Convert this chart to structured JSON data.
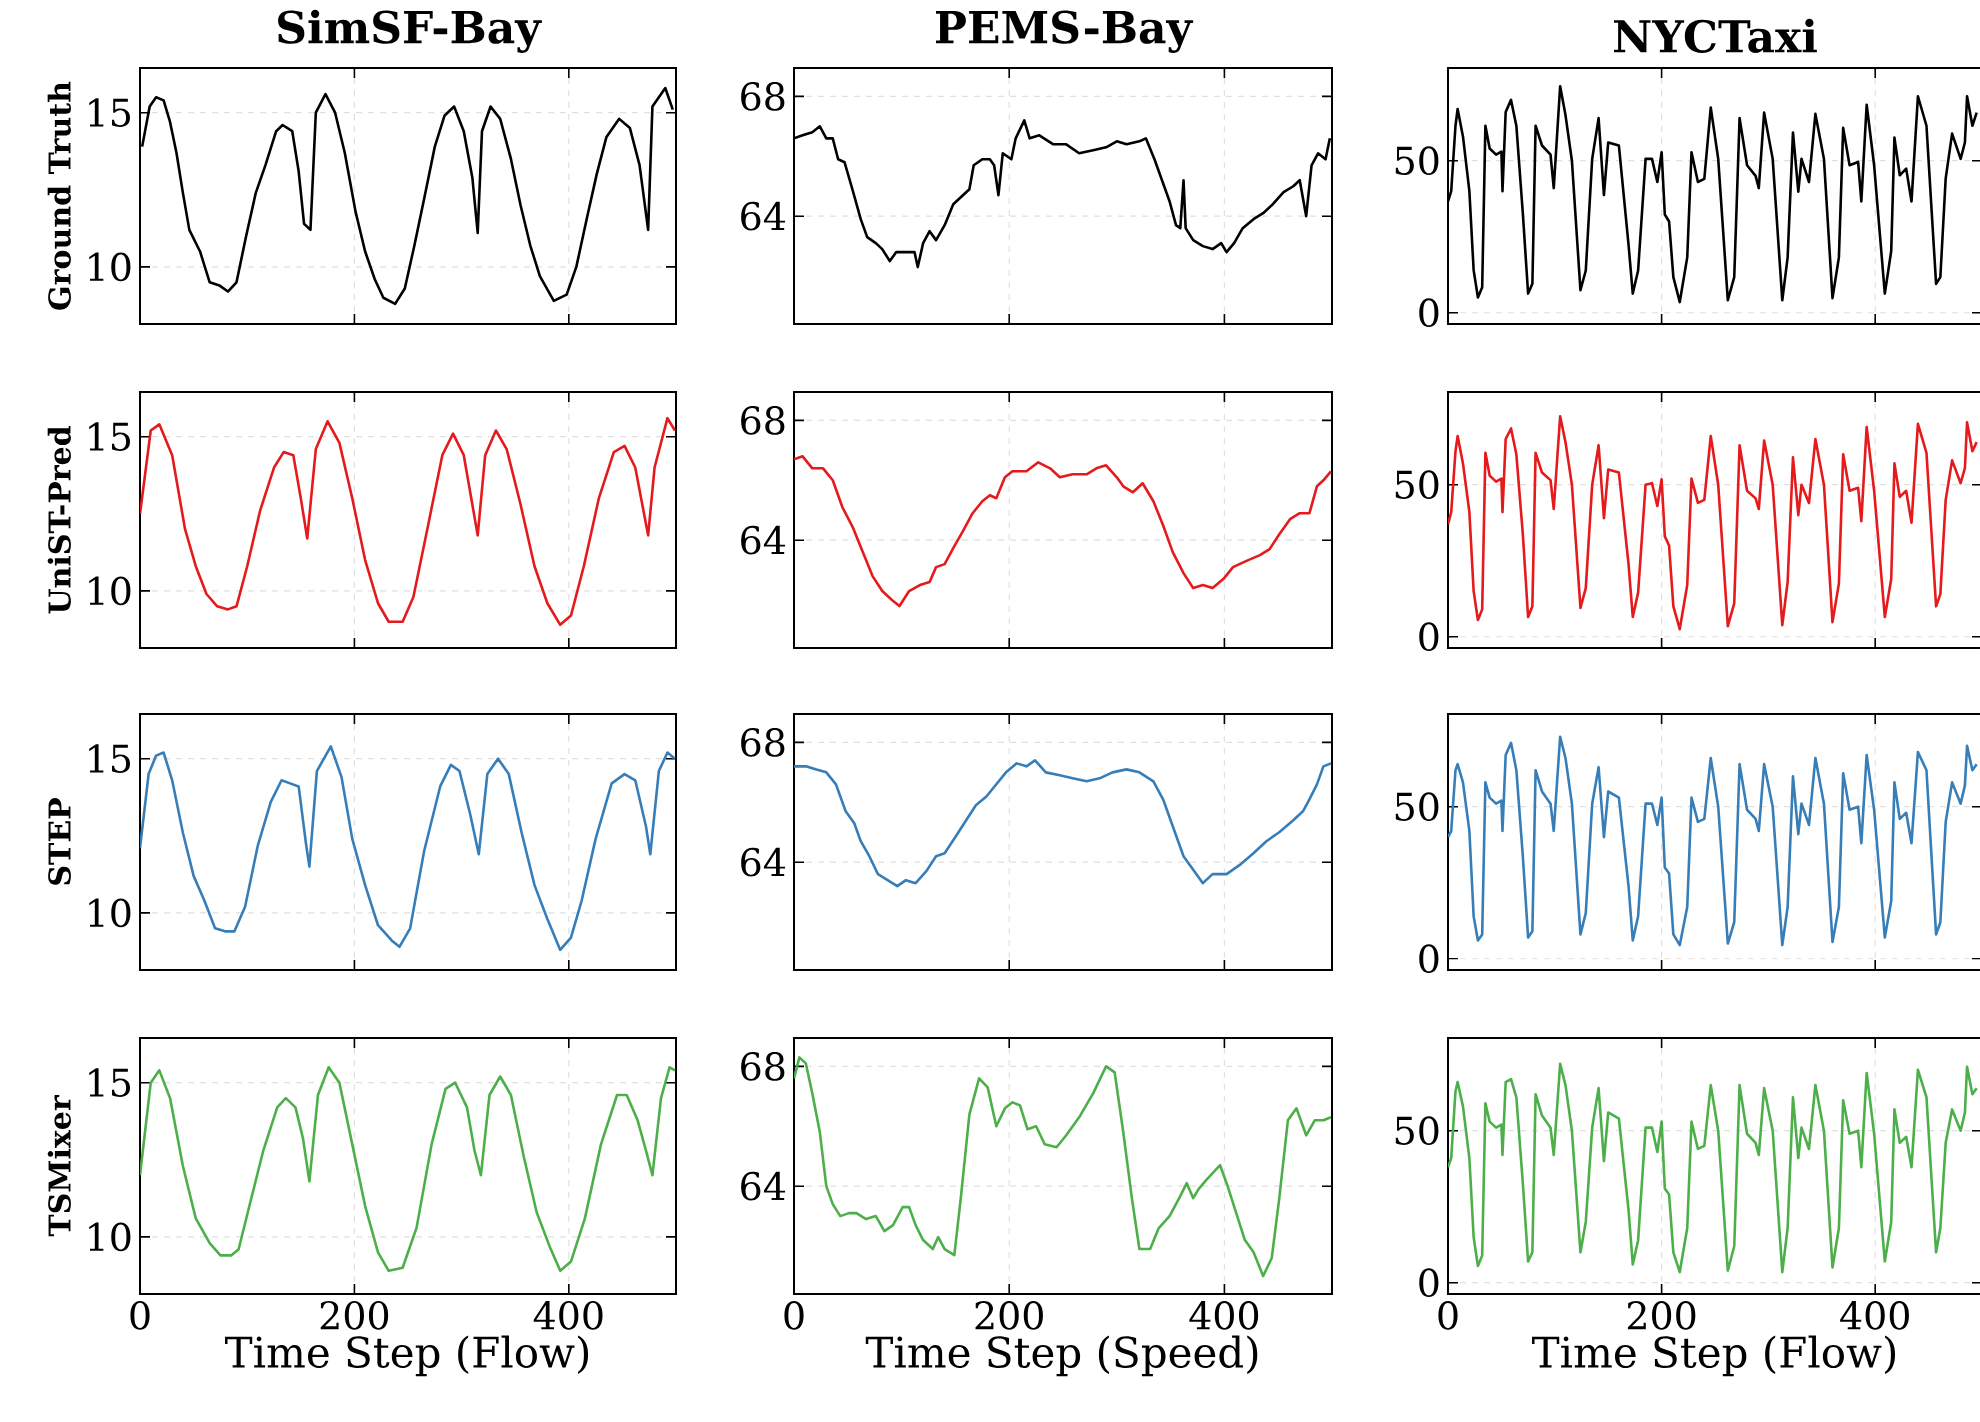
{
  "chart_data": [
    {
      "type": "line",
      "title": "SimSF-Bay",
      "ylabel": "Ground Truth",
      "xlim": [
        0,
        500
      ],
      "ylim": [
        8.15,
        16.45
      ],
      "xticks": [
        0,
        200,
        400
      ],
      "yticks": [
        10,
        15
      ],
      "grid": true,
      "tick_labels": "y",
      "line_style": "solid",
      "series": [
        {
          "color": "#000000",
          "x": [
            2,
            9,
            15,
            22,
            28,
            34,
            40,
            46,
            56,
            65,
            74,
            82,
            90,
            99,
            108,
            117,
            127,
            133,
            142,
            148,
            153,
            159,
            164,
            173,
            182,
            191,
            201,
            210,
            219,
            227,
            238,
            247,
            256,
            265,
            275,
            284,
            293,
            302,
            310,
            315,
            319,
            327,
            336,
            346,
            355,
            364,
            373,
            386,
            398,
            407,
            417,
            426,
            435,
            447,
            457,
            466,
            474,
            478,
            490,
            497
          ],
          "values": [
            13.9,
            15.2,
            15.5,
            15.4,
            14.7,
            13.7,
            12.4,
            11.2,
            10.5,
            9.5,
            9.4,
            9.2,
            9.5,
            11.0,
            12.4,
            13.3,
            14.4,
            14.6,
            14.4,
            13.1,
            11.4,
            11.2,
            15.0,
            15.6,
            15.0,
            13.7,
            11.8,
            10.5,
            9.6,
            9.0,
            8.8,
            9.3,
            10.7,
            12.2,
            13.9,
            14.9,
            15.2,
            14.4,
            12.9,
            11.1,
            14.4,
            15.2,
            14.8,
            13.5,
            12.0,
            10.7,
            9.7,
            8.9,
            9.1,
            10.0,
            11.6,
            13.0,
            14.2,
            14.8,
            14.5,
            13.3,
            11.2,
            15.2,
            15.8,
            15.1
          ]
        }
      ]
    },
    {
      "type": "line",
      "title": "PEMS-Bay",
      "xlim": [
        0,
        500
      ],
      "ylim": [
        60.4,
        68.95
      ],
      "xticks": [
        0,
        200,
        400
      ],
      "yticks": [
        64,
        68
      ],
      "grid": true,
      "tick_labels": "y",
      "line_style": "solid",
      "series": [
        {
          "color": "#000000",
          "x": [
            0,
            8,
            17,
            24,
            30,
            36,
            41,
            47,
            55,
            62,
            68,
            76,
            82,
            89,
            95,
            104,
            112,
            115,
            120,
            126,
            132,
            140,
            148,
            157,
            163,
            167,
            175,
            182,
            186,
            190,
            194,
            202,
            206,
            214,
            219,
            228,
            241,
            253,
            265,
            278,
            290,
            300,
            309,
            321,
            327,
            335,
            343,
            349,
            355,
            359,
            362,
            364,
            371,
            380,
            389,
            397,
            402,
            409,
            417,
            427,
            436,
            445,
            455,
            464,
            470,
            476,
            481,
            487,
            494,
            498
          ],
          "values": [
            66.6,
            66.7,
            66.8,
            67.0,
            66.6,
            66.6,
            65.9,
            65.8,
            64.8,
            63.9,
            63.3,
            63.1,
            62.9,
            62.5,
            62.8,
            62.8,
            62.8,
            62.3,
            63.1,
            63.5,
            63.2,
            63.7,
            64.4,
            64.7,
            64.9,
            65.7,
            65.9,
            65.9,
            65.7,
            64.7,
            66.1,
            65.9,
            66.6,
            67.2,
            66.6,
            66.7,
            66.4,
            66.4,
            66.1,
            66.2,
            66.3,
            66.5,
            66.4,
            66.5,
            66.6,
            65.9,
            65.1,
            64.5,
            63.7,
            63.6,
            65.2,
            63.6,
            63.2,
            63.0,
            62.9,
            63.1,
            62.8,
            63.1,
            63.6,
            63.9,
            64.1,
            64.4,
            64.8,
            65.0,
            65.2,
            64.0,
            65.7,
            66.1,
            65.9,
            66.6
          ]
        }
      ]
    },
    {
      "type": "line",
      "title": "NYCTaxi",
      "xlim": [
        0,
        500
      ],
      "ylim": [
        -3.7,
        80.5
      ],
      "xticks": [
        0,
        200,
        400
      ],
      "yticks": [
        0,
        50
      ],
      "grid": true,
      "tick_labels": "y",
      "line_style": "solid",
      "series": [
        {
          "color": "#000000",
          "x": [
            0,
            3,
            7,
            9,
            14,
            20,
            24,
            28,
            32,
            35,
            39,
            45,
            50,
            51,
            54,
            59,
            64,
            70,
            75,
            79,
            82,
            88,
            96,
            99,
            105,
            110,
            116,
            124,
            129,
            135,
            141,
            146,
            150,
            160,
            169,
            173,
            178,
            185,
            191,
            196,
            200,
            203,
            207,
            211,
            217,
            224,
            228,
            234,
            240,
            246,
            253,
            262,
            268,
            273,
            280,
            288,
            291,
            296,
            304,
            313,
            318,
            323,
            328,
            331,
            338,
            344,
            352,
            360,
            366,
            370,
            376,
            384,
            387,
            392,
            399,
            409,
            415,
            418,
            423,
            429,
            434,
            440,
            448,
            457,
            461,
            466,
            472,
            480,
            484,
            486,
            491,
            495
          ],
          "values": [
            36.6,
            40,
            61.5,
            67,
            58,
            40,
            14,
            5,
            8.4,
            61.5,
            54,
            52,
            53,
            40,
            66,
            70,
            61.5,
            33,
            6.3,
            9.5,
            61.5,
            55,
            52,
            41,
            74.5,
            65,
            50,
            7.4,
            13.9,
            50.6,
            64,
            38.7,
            56,
            55,
            22.5,
            6.3,
            13.9,
            50.6,
            50.6,
            43,
            52.8,
            32.3,
            30,
            11.7,
            3.5,
            18.2,
            52.8,
            43,
            44,
            67.5,
            50.6,
            4.1,
            11.7,
            64,
            48.5,
            45,
            41,
            65.8,
            50.6,
            4.1,
            18.2,
            59.3,
            39.8,
            50.6,
            43,
            65.4,
            50.6,
            4.8,
            18.2,
            60.8,
            48.5,
            49.6,
            36.6,
            68.4,
            48.5,
            6.3,
            20.3,
            57.6,
            45.2,
            47.4,
            36.6,
            71.2,
            61.5,
            9.5,
            11.7,
            44.2,
            58.9,
            50.6,
            56,
            71.2,
            61.5,
            65.8
          ]
        }
      ]
    },
    {
      "type": "line",
      "ylabel": "UniST-Pred",
      "xlim": [
        0,
        500
      ],
      "ylim": [
        8.15,
        16.45
      ],
      "xticks": [
        0,
        200,
        400
      ],
      "yticks": [
        10,
        15
      ],
      "grid": true,
      "tick_labels": "y",
      "line_style": "solid",
      "series": [
        {
          "color": "#e41a1c",
          "x": [
            0,
            10,
            18,
            30,
            42,
            52,
            62,
            72,
            82,
            90,
            100,
            112,
            125,
            134,
            143,
            150,
            156,
            164,
            175,
            186,
            198,
            210,
            222,
            232,
            245,
            255,
            268,
            282,
            292,
            302,
            315,
            322,
            332,
            342,
            355,
            368,
            380,
            392,
            402,
            414,
            428,
            442,
            452,
            462,
            474,
            480,
            492,
            499
          ],
          "values": [
            12.5,
            15.2,
            15.4,
            14.4,
            12.0,
            10.8,
            9.9,
            9.5,
            9.4,
            9.5,
            10.8,
            12.6,
            14.0,
            14.5,
            14.4,
            13.0,
            11.7,
            14.6,
            15.5,
            14.8,
            13.0,
            11.0,
            9.6,
            9.0,
            9.0,
            9.8,
            12.0,
            14.4,
            15.1,
            14.4,
            11.8,
            14.4,
            15.2,
            14.6,
            12.8,
            10.8,
            9.6,
            8.9,
            9.2,
            10.8,
            13.0,
            14.5,
            14.7,
            14.0,
            11.8,
            14.0,
            15.6,
            15.2
          ]
        }
      ]
    },
    {
      "type": "line",
      "xlim": [
        0,
        500
      ],
      "ylim": [
        60.4,
        68.95
      ],
      "xticks": [
        0,
        200,
        400
      ],
      "yticks": [
        64,
        68
      ],
      "grid": true,
      "tick_labels": "y",
      "line_style": "solid",
      "series": [
        {
          "color": "#e41a1c",
          "x": [
            0,
            8,
            17,
            27,
            36,
            45,
            55,
            64,
            73,
            82,
            91,
            98,
            107,
            117,
            126,
            132,
            140,
            149,
            157,
            166,
            175,
            182,
            188,
            196,
            203,
            216,
            227,
            238,
            247,
            259,
            272,
            281,
            290,
            300,
            306,
            315,
            324,
            334,
            343,
            352,
            362,
            371,
            380,
            389,
            399,
            408,
            420,
            433,
            442,
            451,
            461,
            470,
            479,
            486,
            492,
            499
          ],
          "values": [
            66.7,
            66.8,
            66.4,
            66.4,
            66.0,
            65.1,
            64.4,
            63.6,
            62.8,
            62.3,
            62.0,
            61.8,
            62.3,
            62.5,
            62.6,
            63.1,
            63.2,
            63.8,
            64.3,
            64.9,
            65.3,
            65.5,
            65.4,
            66.1,
            66.3,
            66.3,
            66.6,
            66.4,
            66.1,
            66.2,
            66.2,
            66.4,
            66.5,
            66.1,
            65.8,
            65.6,
            65.9,
            65.3,
            64.5,
            63.6,
            62.9,
            62.4,
            62.5,
            62.4,
            62.7,
            63.1,
            63.3,
            63.5,
            63.7,
            64.2,
            64.7,
            64.9,
            64.9,
            65.8,
            66.0,
            66.3
          ]
        }
      ]
    },
    {
      "type": "line",
      "xlim": [
        0,
        500
      ],
      "ylim": [
        -3.7,
        80.5
      ],
      "xticks": [
        0,
        200,
        400
      ],
      "yticks": [
        0,
        50
      ],
      "grid": true,
      "tick_labels": "y",
      "line_style": "solid",
      "series": [
        {
          "color": "#e41a1c",
          "x": [
            0,
            3,
            7,
            9,
            14,
            20,
            24,
            28,
            32,
            35,
            39,
            45,
            50,
            51,
            54,
            59,
            64,
            70,
            75,
            79,
            82,
            88,
            96,
            99,
            105,
            110,
            116,
            124,
            129,
            135,
            141,
            146,
            150,
            160,
            169,
            173,
            178,
            185,
            191,
            196,
            200,
            203,
            207,
            211,
            217,
            224,
            228,
            234,
            240,
            246,
            253,
            262,
            268,
            273,
            280,
            288,
            291,
            296,
            304,
            313,
            318,
            323,
            328,
            331,
            338,
            344,
            352,
            360,
            366,
            370,
            376,
            384,
            387,
            392,
            399,
            409,
            415,
            418,
            423,
            429,
            434,
            440,
            448,
            457,
            461,
            466,
            472,
            480,
            484,
            486,
            491,
            495
          ],
          "values": [
            37,
            41,
            61,
            66,
            57,
            41,
            15,
            5.5,
            9,
            60.5,
            53,
            51,
            52,
            41,
            65,
            68.5,
            60,
            34,
            6.5,
            10,
            60.5,
            54,
            51.5,
            42,
            72.5,
            64,
            50,
            9.5,
            16,
            50,
            63,
            39,
            55,
            54,
            24,
            6.5,
            14.5,
            50,
            50.5,
            43,
            51.8,
            33,
            30,
            10,
            2.5,
            17,
            52,
            44,
            45,
            66,
            50,
            3.5,
            11,
            63,
            48,
            45.5,
            42,
            64.5,
            50,
            3.8,
            18,
            59,
            40,
            50,
            44,
            65,
            50,
            4.8,
            17.5,
            60,
            48,
            49,
            38,
            69,
            48,
            6.5,
            19,
            57,
            46,
            48,
            37.5,
            70,
            60.5,
            10,
            14,
            45,
            58,
            50.5,
            55.5,
            70.5,
            61,
            64
          ]
        }
      ]
    },
    {
      "type": "line",
      "ylabel": "STEP",
      "xlim": [
        0,
        500
      ],
      "ylim": [
        8.15,
        16.45
      ],
      "xticks": [
        0,
        200,
        400
      ],
      "yticks": [
        10,
        15
      ],
      "grid": true,
      "tick_labels": "y",
      "line_style": "solid",
      "series": [
        {
          "color": "#377eb8",
          "x": [
            0,
            8,
            15,
            22,
            30,
            40,
            50,
            60,
            70,
            80,
            88,
            98,
            110,
            122,
            132,
            140,
            148,
            155,
            158,
            165,
            178,
            188,
            198,
            210,
            222,
            235,
            242,
            252,
            265,
            280,
            290,
            298,
            308,
            316,
            324,
            334,
            344,
            356,
            368,
            380,
            392,
            402,
            412,
            425,
            440,
            452,
            462,
            472,
            476,
            484,
            492,
            499
          ],
          "values": [
            12.1,
            14.5,
            15.1,
            15.2,
            14.3,
            12.6,
            11.2,
            10.4,
            9.5,
            9.4,
            9.4,
            10.2,
            12.2,
            13.6,
            14.3,
            14.2,
            14.1,
            12.2,
            11.5,
            14.6,
            15.4,
            14.4,
            12.4,
            10.9,
            9.6,
            9.1,
            8.9,
            9.5,
            12.0,
            14.1,
            14.8,
            14.6,
            13.2,
            11.9,
            14.5,
            15.0,
            14.5,
            12.6,
            10.9,
            9.8,
            8.8,
            9.2,
            10.4,
            12.4,
            14.2,
            14.5,
            14.3,
            12.8,
            11.9,
            14.6,
            15.2,
            15.0
          ]
        }
      ]
    },
    {
      "type": "line",
      "xlim": [
        0,
        500
      ],
      "ylim": [
        60.4,
        68.95
      ],
      "xticks": [
        0,
        200,
        400
      ],
      "yticks": [
        64,
        68
      ],
      "grid": true,
      "tick_labels": "y",
      "line_style": "solid",
      "series": [
        {
          "color": "#377eb8",
          "x": [
            0,
            11,
            20,
            30,
            39,
            48,
            56,
            62,
            70,
            78,
            87,
            96,
            104,
            113,
            123,
            132,
            140,
            151,
            160,
            169,
            179,
            188,
            197,
            207,
            216,
            224,
            234,
            247,
            259,
            272,
            284,
            296,
            309,
            321,
            334,
            343,
            352,
            362,
            372,
            380,
            389,
            402,
            414,
            427,
            439,
            451,
            464,
            473,
            479,
            486,
            492,
            499
          ],
          "values": [
            67.2,
            67.2,
            67.1,
            67.0,
            66.6,
            65.7,
            65.3,
            64.7,
            64.2,
            63.6,
            63.4,
            63.2,
            63.4,
            63.3,
            63.7,
            64.2,
            64.3,
            64.9,
            65.4,
            65.9,
            66.2,
            66.6,
            67.0,
            67.3,
            67.2,
            67.4,
            67.0,
            66.9,
            66.8,
            66.7,
            66.8,
            67.0,
            67.1,
            67.0,
            66.7,
            66.1,
            65.2,
            64.2,
            63.7,
            63.3,
            63.6,
            63.6,
            63.9,
            64.3,
            64.7,
            65.0,
            65.4,
            65.7,
            66.1,
            66.6,
            67.2,
            67.3
          ]
        }
      ]
    },
    {
      "type": "line",
      "xlim": [
        0,
        500
      ],
      "ylim": [
        -3.7,
        80.5
      ],
      "xticks": [
        0,
        200,
        400
      ],
      "yticks": [
        0,
        50
      ],
      "grid": true,
      "tick_labels": "y",
      "line_style": "solid",
      "series": [
        {
          "color": "#377eb8",
          "x": [
            0,
            3,
            7,
            9,
            14,
            20,
            24,
            28,
            32,
            35,
            39,
            45,
            50,
            51,
            54,
            59,
            64,
            70,
            75,
            79,
            82,
            88,
            96,
            99,
            105,
            110,
            116,
            124,
            129,
            135,
            141,
            146,
            150,
            160,
            169,
            173,
            178,
            185,
            191,
            196,
            200,
            203,
            207,
            211,
            217,
            224,
            228,
            234,
            240,
            246,
            253,
            262,
            268,
            273,
            280,
            288,
            291,
            296,
            304,
            313,
            318,
            323,
            328,
            331,
            338,
            344,
            352,
            360,
            366,
            370,
            376,
            384,
            387,
            392,
            399,
            409,
            415,
            418,
            423,
            429,
            434,
            440,
            448,
            457,
            461,
            466,
            472,
            480,
            484,
            486,
            491,
            495
          ],
          "values": [
            40,
            42,
            62,
            64,
            58,
            42,
            14,
            6,
            8,
            58,
            53,
            51,
            52,
            42,
            67,
            71,
            62,
            34,
            7,
            9,
            62,
            55,
            51,
            42,
            73,
            66,
            51,
            8,
            15,
            51,
            63,
            40,
            55,
            53,
            24,
            6,
            14,
            51,
            51,
            44,
            53,
            30,
            28,
            8,
            4.5,
            17,
            53,
            45,
            46,
            66,
            50,
            5,
            12,
            64,
            49,
            46,
            42,
            64,
            50,
            4.5,
            17,
            60,
            41,
            51,
            44,
            66,
            51,
            5.5,
            17,
            61,
            49,
            50,
            38,
            67,
            49,
            7,
            19,
            58,
            46,
            48,
            38,
            68,
            62,
            8,
            12,
            45,
            58,
            51,
            57,
            70,
            62,
            64
          ]
        }
      ]
    },
    {
      "type": "line",
      "ylabel": "TSMixer",
      "xlabel": "Time Step (Flow)",
      "xlim": [
        0,
        500
      ],
      "ylim": [
        8.15,
        16.45
      ],
      "xticks": [
        0,
        200,
        400
      ],
      "yticks": [
        10,
        15
      ],
      "grid": true,
      "line_style": "solid",
      "series": [
        {
          "color": "#4daf4a",
          "x": [
            0,
            10,
            18,
            28,
            40,
            52,
            65,
            75,
            85,
            92,
            102,
            115,
            128,
            136,
            145,
            152,
            158,
            166,
            176,
            186,
            198,
            210,
            222,
            232,
            245,
            258,
            272,
            285,
            294,
            305,
            312,
            318,
            326,
            336,
            346,
            358,
            370,
            382,
            392,
            402,
            415,
            430,
            445,
            454,
            464,
            472,
            478,
            486,
            494,
            499
          ],
          "values": [
            12.0,
            15.0,
            15.4,
            14.5,
            12.3,
            10.6,
            9.8,
            9.4,
            9.4,
            9.6,
            11.0,
            12.8,
            14.2,
            14.5,
            14.2,
            13.2,
            11.8,
            14.6,
            15.5,
            15.0,
            13.0,
            11.0,
            9.5,
            8.9,
            9.0,
            10.3,
            13.0,
            14.8,
            15.0,
            14.2,
            12.8,
            12.0,
            14.6,
            15.2,
            14.6,
            12.6,
            10.8,
            9.7,
            8.9,
            9.2,
            10.6,
            13.0,
            14.6,
            14.6,
            13.8,
            12.8,
            12.0,
            14.5,
            15.5,
            15.4
          ]
        }
      ]
    },
    {
      "type": "line",
      "xlabel": "Time Step (Speed)",
      "xlim": [
        0,
        500
      ],
      "ylim": [
        60.4,
        68.95
      ],
      "xticks": [
        0,
        200,
        400
      ],
      "yticks": [
        64,
        68
      ],
      "grid": true,
      "line_style": "solid",
      "series": [
        {
          "color": "#4daf4a",
          "x": [
            0,
            5,
            11,
            17,
            24,
            30,
            36,
            43,
            51,
            58,
            67,
            76,
            84,
            92,
            101,
            107,
            113,
            120,
            129,
            134,
            140,
            149,
            155,
            163,
            172,
            180,
            188,
            196,
            203,
            210,
            217,
            225,
            233,
            244,
            253,
            265,
            278,
            290,
            298,
            306,
            314,
            321,
            331,
            339,
            349,
            358,
            365,
            371,
            376,
            383,
            396,
            403,
            411,
            419,
            427,
            436,
            444,
            451,
            459,
            467,
            476,
            484,
            492,
            499
          ],
          "values": [
            67.6,
            68.3,
            68.1,
            67.1,
            65.8,
            64.0,
            63.4,
            63.0,
            63.1,
            63.1,
            62.9,
            63.0,
            62.5,
            62.7,
            63.3,
            63.3,
            62.7,
            62.2,
            61.9,
            62.3,
            61.9,
            61.7,
            63.6,
            66.4,
            67.6,
            67.3,
            66.0,
            66.6,
            66.8,
            66.7,
            65.9,
            66.0,
            65.4,
            65.3,
            65.7,
            66.3,
            67.1,
            68.0,
            67.8,
            65.8,
            63.6,
            61.9,
            61.9,
            62.6,
            63.0,
            63.6,
            64.1,
            63.6,
            63.9,
            64.2,
            64.7,
            64.0,
            63.1,
            62.2,
            61.8,
            61.0,
            61.6,
            63.6,
            66.2,
            66.6,
            65.7,
            66.2,
            66.2,
            66.3
          ]
        }
      ]
    },
    {
      "type": "line",
      "xlabel": "Time Step (Flow)",
      "xlim": [
        0,
        500
      ],
      "ylim": [
        -3.7,
        80.5
      ],
      "xticks": [
        0,
        200,
        400
      ],
      "yticks": [
        0,
        50
      ],
      "grid": true,
      "line_style": "solid",
      "series": [
        {
          "color": "#4daf4a",
          "x": [
            0,
            3,
            7,
            9,
            14,
            20,
            24,
            28,
            32,
            35,
            39,
            45,
            50,
            51,
            54,
            59,
            64,
            70,
            75,
            79,
            82,
            88,
            96,
            99,
            105,
            110,
            116,
            124,
            129,
            135,
            141,
            146,
            150,
            160,
            169,
            173,
            178,
            185,
            191,
            196,
            200,
            203,
            207,
            211,
            217,
            224,
            228,
            234,
            240,
            246,
            253,
            262,
            268,
            273,
            280,
            288,
            291,
            296,
            304,
            313,
            318,
            323,
            328,
            331,
            338,
            344,
            352,
            360,
            366,
            370,
            376,
            384,
            387,
            392,
            399,
            409,
            415,
            418,
            423,
            429,
            434,
            440,
            448,
            457,
            461,
            466,
            472,
            480,
            484,
            486,
            491,
            495
          ],
          "values": [
            38,
            41,
            63,
            66,
            58,
            41,
            15,
            5.5,
            9,
            59,
            53,
            51,
            52,
            42,
            66,
            67,
            61,
            33,
            7,
            10,
            62,
            55,
            51,
            42,
            72,
            65,
            50,
            10,
            20,
            51,
            64,
            40,
            56,
            54,
            24,
            6,
            14,
            51,
            51,
            43,
            53,
            31,
            29,
            10,
            3.5,
            18,
            53,
            44,
            45,
            65,
            50,
            4,
            12,
            65,
            49,
            46,
            42,
            64,
            50,
            3.5,
            18,
            61,
            41,
            51,
            44,
            65,
            50,
            5,
            18,
            60,
            49,
            50,
            38,
            69,
            49,
            7,
            20,
            57,
            46,
            48,
            38,
            70,
            61,
            10,
            18,
            46,
            57,
            50,
            56,
            71,
            62,
            64
          ]
        }
      ]
    }
  ]
}
